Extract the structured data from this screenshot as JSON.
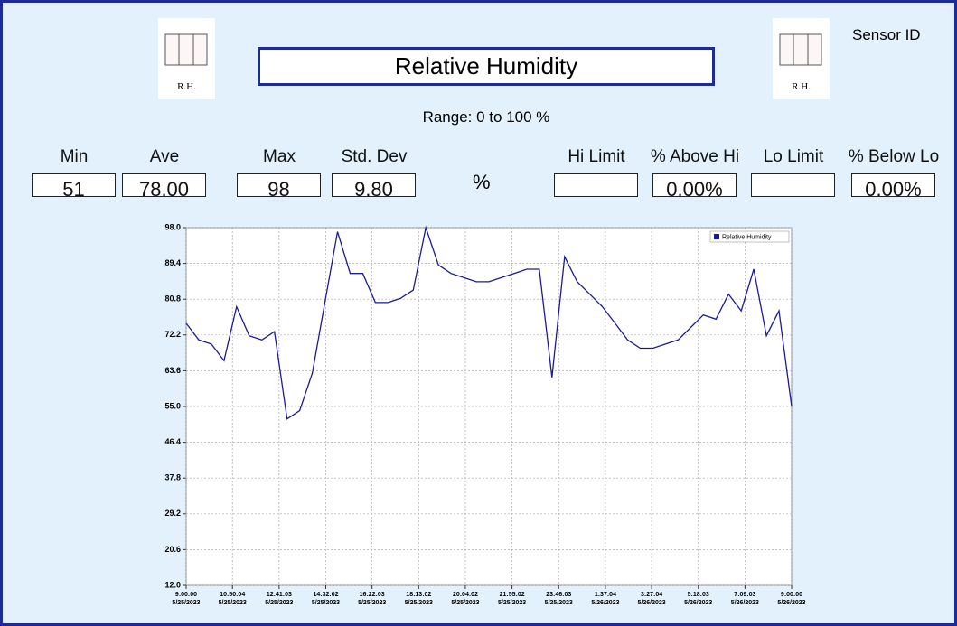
{
  "header": {
    "title": "Relative Humidity",
    "sensor_label": "Sensor ID",
    "range": "Range: 0 to 100 %",
    "icon_left": "R.H.",
    "icon_right": "R.H.",
    "unit": "%"
  },
  "stats": [
    {
      "label": "Min",
      "value": "51"
    },
    {
      "label": "Ave",
      "value": "78.00"
    },
    {
      "label": "Max",
      "value": "98"
    },
    {
      "label": "Std. Dev",
      "value": "9.80"
    }
  ],
  "limits": [
    {
      "label": "Hi Limit"
    },
    {
      "label": "% Above Hi",
      "value": "0.00%"
    },
    {
      "label": "Lo Limit"
    },
    {
      "label": "% Below Lo",
      "value": "0.00%"
    }
  ],
  "chart_data": {
    "type": "line",
    "x": [
      "5/25/2023 9:00:00",
      "5/25/2023 9:30:00",
      "5/25/2023 10:00:00",
      "5/25/2023 10:30:00",
      "5/25/2023 11:00:00",
      "5/25/2023 11:30:00",
      "5/25/2023 12:00:00",
      "5/25/2023 12:30:00",
      "5/25/2023 13:00:00",
      "5/25/2023 13:30:00",
      "5/25/2023 14:00:00",
      "5/25/2023 14:30:00",
      "5/25/2023 15:00:00",
      "5/25/2023 15:30:00",
      "5/25/2023 16:00:00",
      "5/25/2023 16:30:00",
      "5/25/2023 17:00:00",
      "5/25/2023 17:30:00",
      "5/25/2023 18:00:00",
      "5/25/2023 18:30:00",
      "5/25/2023 19:00:00",
      "5/25/2023 19:30:00",
      "5/25/2023 20:00:00",
      "5/25/2023 20:30:00",
      "5/25/2023 21:00:00",
      "5/25/2023 21:30:00",
      "5/25/2023 22:00:00",
      "5/25/2023 22:30:00",
      "5/25/2023 23:00:00",
      "5/25/2023 23:30:00",
      "5/26/2023 0:00:00",
      "5/26/2023 0:30:00",
      "5/26/2023 1:00:00",
      "5/26/2023 1:30:00",
      "5/26/2023 2:00:00",
      "5/26/2023 2:30:00",
      "5/26/2023 3:00:00",
      "5/26/2023 3:30:00",
      "5/26/2023 4:00:00",
      "5/26/2023 4:30:00",
      "5/26/2023 5:00:00",
      "5/26/2023 5:30:00",
      "5/26/2023 6:00:00",
      "5/26/2023 6:30:00",
      "5/26/2023 7:00:00",
      "5/26/2023 7:30:00",
      "5/26/2023 8:00:00",
      "5/26/2023 8:30:00",
      "5/26/2023 9:00:00"
    ],
    "series": [
      {
        "name": "Relative Humidity",
        "color": "#1a1a9c",
        "values": [
          75,
          71,
          70,
          66,
          79,
          72,
          71,
          73,
          52,
          54,
          63,
          80,
          97,
          87,
          87,
          80,
          80,
          81,
          83,
          98,
          89,
          87,
          86,
          85,
          85,
          86,
          87,
          88,
          88,
          62,
          91,
          85,
          82,
          79,
          75,
          71,
          69,
          69,
          70,
          71,
          74,
          77,
          76,
          82,
          78,
          88,
          72,
          78,
          55
        ]
      }
    ],
    "ylim": [
      12,
      98
    ],
    "yticks": [
      {
        "value": 12,
        "label": "12.0"
      },
      20.6,
      29.2,
      37.8,
      46.4,
      {
        "value": 55,
        "label": "55.0"
      },
      63.6,
      72.2,
      80.8,
      89.4,
      {
        "value": 98,
        "label": "98.0"
      }
    ],
    "xticks": [
      {
        "time": "9:00:00",
        "date": "5/25/2023"
      },
      {
        "time": "10:50:04",
        "date": "5/25/2023"
      },
      {
        "time": "12:41:03",
        "date": "5/25/2023"
      },
      {
        "time": "14:32:02",
        "date": "5/25/2023"
      },
      {
        "time": "16:22:03",
        "date": "5/25/2023"
      },
      {
        "time": "18:13:02",
        "date": "5/25/2023"
      },
      {
        "time": "20:04:02",
        "date": "5/25/2023"
      },
      {
        "time": "21:55:02",
        "date": "5/25/2023"
      },
      {
        "time": "23:46:03",
        "date": "5/25/2023"
      },
      {
        "time": "1:37:04",
        "date": "5/26/2023"
      },
      {
        "time": "3:27:04",
        "date": "5/26/2023"
      },
      {
        "time": "5:18:03",
        "date": "5/26/2023"
      },
      {
        "time": "7:09:03",
        "date": "5/26/2023"
      },
      {
        "time": "9:00:00",
        "date": "5/26/2023"
      }
    ],
    "grid": true,
    "legend": "top-right"
  }
}
